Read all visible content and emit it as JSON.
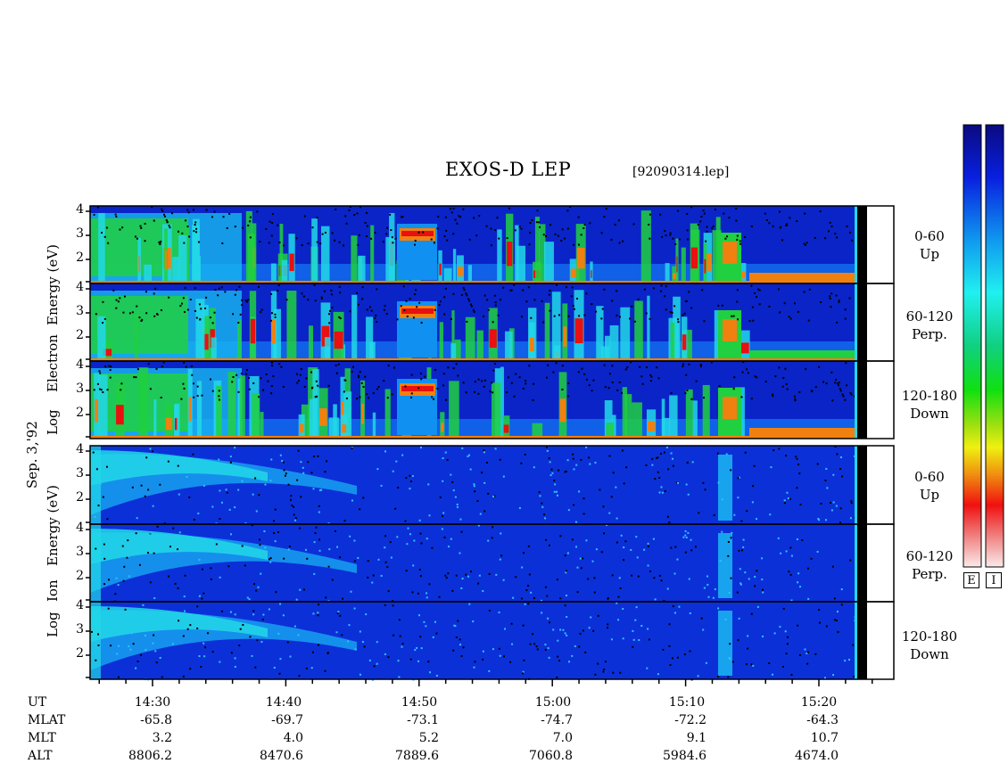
{
  "title": "EXOS-D LEP",
  "file": "[92090314.lep]",
  "date_label": "Sep. 3,'92",
  "electron_label": {
    "line1": "Log",
    "line2": "Electron",
    "line3": "Energy (eV)"
  },
  "ion_label": {
    "line1": "Log",
    "line2": "Ion",
    "line3": "Energy (eV)"
  },
  "pitch_angle_labels": [
    {
      "range": "0-60",
      "dir": "Up"
    },
    {
      "range": "60-120",
      "dir": "Perp."
    },
    {
      "range": "120-180",
      "dir": "Down"
    },
    {
      "range": "0-60",
      "dir": "Up"
    },
    {
      "range": "60-120",
      "dir": "Perp."
    },
    {
      "range": "120-180",
      "dir": "Down"
    }
  ],
  "y_ticks": [
    "4",
    "3",
    "2"
  ],
  "colorbar_labels": [
    "E",
    "I"
  ],
  "colors": {
    "background_blue": "#0a24c8",
    "deep_blue": "#0616a0",
    "cyan": "#22d8e8",
    "green": "#20d040",
    "yellow": "#f0e020",
    "orange": "#f08010",
    "red": "#e81010",
    "pink": "#f8c0c0"
  },
  "axis": {
    "row_labels": [
      "UT",
      "MLAT",
      "MLT",
      "ALT"
    ],
    "ut": [
      "14:30",
      "14:40",
      "14:50",
      "15:00",
      "15:10",
      "15:20"
    ],
    "mlat": [
      "-65.8",
      "-69.7",
      "-73.1",
      "-74.7",
      "-72.2",
      "-64.3"
    ],
    "mlt": [
      "3.2",
      "4.0",
      "5.2",
      "7.0",
      "9.1",
      "10.7"
    ],
    "alt": [
      "8806.2",
      "8470.6",
      "7889.6",
      "7060.8",
      "5984.6",
      "4674.0"
    ]
  },
  "chart_data": {
    "type": "heatmap",
    "title": "EXOS-D LEP",
    "xlabel": "UT",
    "ylabel": "Log Energy (eV)",
    "ylim": [
      1,
      4
    ],
    "x": [
      "14:30",
      "14:40",
      "14:50",
      "15:00",
      "15:10",
      "15:20"
    ],
    "panels": [
      {
        "species": "Electron",
        "pitch_angle": "0-60",
        "direction": "Up"
      },
      {
        "species": "Electron",
        "pitch_angle": "60-120",
        "direction": "Perp."
      },
      {
        "species": "Electron",
        "pitch_angle": "120-180",
        "direction": "Down"
      },
      {
        "species": "Ion",
        "pitch_angle": "0-60",
        "direction": "Up"
      },
      {
        "species": "Ion",
        "pitch_angle": "60-120",
        "direction": "Perp."
      },
      {
        "species": "Ion",
        "pitch_angle": "120-180",
        "direction": "Down"
      }
    ]
  }
}
